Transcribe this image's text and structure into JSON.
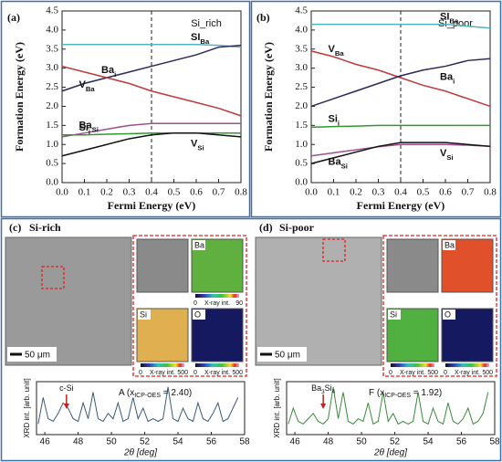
{
  "chart_data": [
    {
      "type": "line",
      "panel": "(a)",
      "annotation": "Si_rich",
      "xlabel": "Fermi Energy (eV)",
      "ylabel": "Formation Energy (eV)",
      "x": [
        0,
        0.1,
        0.2,
        0.3,
        0.4,
        0.5,
        0.6,
        0.7,
        0.8
      ],
      "xlim": [
        0,
        0.8
      ],
      "ylim": [
        0,
        4.5
      ],
      "xticks": [
        {
          "value": 0,
          "label": "0.0"
        },
        0.1,
        0.2,
        0.3,
        0.4,
        0.5,
        0.6,
        0.7,
        0.8
      ],
      "yticks": [
        {
          "value": 0,
          "label": "0.0"
        },
        0.5,
        {
          "value": 1,
          "label": "1.0"
        },
        1.5,
        {
          "value": 2,
          "label": "2.0"
        },
        2.5,
        {
          "value": 3,
          "label": "3.0"
        },
        3.5,
        {
          "value": 4,
          "label": "4.0"
        },
        4.5
      ],
      "vline": 0.4,
      "series": [
        {
          "name": "SI",
          "sub": "Ba",
          "color": "#4fb3c0",
          "values": [
            3.62,
            3.62,
            3.62,
            3.62,
            3.62,
            3.62,
            3.62,
            3.6,
            3.55
          ]
        },
        {
          "name": "Ba",
          "sub": "i",
          "color": "#2a2a5a",
          "values": [
            2.4,
            2.6,
            2.75,
            2.9,
            3.05,
            3.2,
            3.35,
            3.55,
            3.6
          ]
        },
        {
          "name": "V",
          "sub": "Ba",
          "color": "#c0393b",
          "values": [
            3.05,
            2.9,
            2.75,
            2.6,
            2.4,
            2.25,
            2.1,
            1.95,
            1.75
          ]
        },
        {
          "name": "Ba",
          "sub": "Si",
          "color": "#a0508e",
          "values": [
            1.2,
            1.3,
            1.4,
            1.5,
            1.55,
            1.55,
            1.55,
            1.55,
            1.55
          ]
        },
        {
          "name": "Si",
          "sub": "i",
          "color": "#2e9a2e",
          "values": [
            1.25,
            1.25,
            1.27,
            1.28,
            1.3,
            1.3,
            1.3,
            1.3,
            1.3
          ]
        },
        {
          "name": "V",
          "sub": "Si",
          "color": "#111111",
          "values": [
            0.7,
            0.85,
            1.0,
            1.15,
            1.25,
            1.3,
            1.3,
            1.25,
            1.2
          ]
        }
      ]
    },
    {
      "type": "line",
      "panel": "(b)",
      "annotation": "Si_poor",
      "xlabel": "Fermi Energy (eV)",
      "ylabel": "Formation Energy (eV)",
      "x": [
        0,
        0.1,
        0.2,
        0.3,
        0.4,
        0.5,
        0.6,
        0.7,
        0.8
      ],
      "xlim": [
        0,
        0.8
      ],
      "ylim": [
        0,
        4.5
      ],
      "xticks": [
        {
          "value": 0,
          "label": "0.0"
        },
        0.1,
        0.2,
        0.3,
        0.4,
        0.5,
        0.6,
        0.7,
        0.8
      ],
      "yticks": [
        {
          "value": 0,
          "label": "0.0"
        },
        0.5,
        {
          "value": 1,
          "label": "1.0"
        },
        1.5,
        {
          "value": 2,
          "label": "2.0"
        },
        2.5,
        {
          "value": 3,
          "label": "3.0"
        },
        3.5,
        {
          "value": 4,
          "label": "4.0"
        },
        4.5
      ],
      "vline": 0.4,
      "series": [
        {
          "name": "SI",
          "sub": "Ba",
          "color": "#4fb3c0",
          "values": [
            4.15,
            4.15,
            4.15,
            4.15,
            4.15,
            4.15,
            4.15,
            4.1,
            4.05
          ]
        },
        {
          "name": "V",
          "sub": "Ba",
          "color": "#c0393b",
          "values": [
            3.45,
            3.3,
            3.1,
            2.95,
            2.75,
            2.55,
            2.4,
            2.2,
            2.0
          ]
        },
        {
          "name": "Ba",
          "sub": "i",
          "color": "#2a2a5a",
          "values": [
            2.0,
            2.2,
            2.4,
            2.6,
            2.8,
            2.95,
            3.05,
            3.2,
            3.25
          ]
        },
        {
          "name": "Si",
          "sub": "i",
          "color": "#2e9a2e",
          "values": [
            1.45,
            1.47,
            1.48,
            1.5,
            1.5,
            1.5,
            1.5,
            1.5,
            1.5
          ]
        },
        {
          "name": "Ba",
          "sub": "Si",
          "color": "#a0508e",
          "values": [
            0.7,
            0.78,
            0.86,
            0.94,
            1.0,
            1.0,
            1.0,
            0.98,
            0.95
          ]
        },
        {
          "name": "V",
          "sub": "Si",
          "color": "#111111",
          "values": [
            0.5,
            0.65,
            0.8,
            0.95,
            1.05,
            1.05,
            1.05,
            1.0,
            0.95
          ]
        }
      ]
    },
    {
      "type": "xrd",
      "panel": "(c)",
      "title": "Si-rich",
      "xlabel": "2θ [deg]",
      "ylabel": "XRD int. [arb. unit]",
      "annotation": {
        "pre": "A (x",
        "sub": "ICP-OES",
        "post": " = 2.40)"
      },
      "marker": {
        "text": "c-Si",
        "x": 47.3
      },
      "x": [
        45.6,
        45.9,
        46.2,
        46.5,
        46.8,
        47.1,
        47.4,
        47.7,
        48.0,
        48.3,
        48.6,
        48.9,
        49.2,
        49.5,
        49.8,
        50.1,
        50.4,
        50.7,
        51.0,
        51.3,
        51.6,
        51.9,
        52.2,
        52.5,
        52.8,
        53.1,
        53.4,
        53.7,
        54.0,
        54.3,
        54.6,
        54.9,
        55.2,
        55.5,
        55.8,
        56.1,
        56.4,
        56.7,
        57.0,
        57.3,
        57.6
      ],
      "xlim": [
        45.5,
        58
      ],
      "ylim": [
        0,
        10
      ],
      "xticks": [
        46,
        48,
        50,
        52,
        54,
        56,
        58
      ],
      "color": "#3a5a7a",
      "values": [
        2,
        7,
        3,
        2.5,
        4,
        6,
        5,
        3,
        2.5,
        6,
        3,
        8,
        3,
        2.5,
        4,
        3,
        6,
        2.5,
        3,
        7,
        3,
        5,
        2.5,
        3,
        2.5,
        3,
        9,
        3,
        2.5,
        5,
        3,
        2.5,
        6,
        3,
        2.5,
        4,
        6,
        2.5,
        3,
        5,
        7
      ],
      "scale_bar": "50 μm",
      "maps": [
        {
          "label": "Ba",
          "min": "0",
          "bar": "X-ray int.",
          "max": "90"
        },
        {
          "label": "Si",
          "min": "0",
          "bar": "X-ray int.",
          "max": "500"
        },
        {
          "label": "O",
          "min": "0",
          "bar": "X-ray int.",
          "max": "500"
        }
      ]
    },
    {
      "type": "xrd",
      "panel": "(d)",
      "title": "Si-poor",
      "xlabel": "2θ [deg]",
      "ylabel": "XRD int. [arb. unit]",
      "annotation": {
        "pre": "F (x",
        "sub": "ICP-OES",
        "post": " = 1.92)"
      },
      "marker": {
        "text": "Ba",
        "sub": "3",
        "text2": "Si",
        "sub2": "4",
        "x": 47.7
      },
      "x": [
        45.6,
        45.9,
        46.2,
        46.5,
        46.8,
        47.1,
        47.4,
        47.7,
        48.0,
        48.3,
        48.6,
        48.9,
        49.2,
        49.5,
        49.8,
        50.1,
        50.4,
        50.7,
        51.0,
        51.3,
        51.6,
        51.9,
        52.2,
        52.5,
        52.8,
        53.1,
        53.4,
        53.7,
        54.0,
        54.3,
        54.6,
        54.9,
        55.2,
        55.5,
        55.8,
        56.1,
        56.4,
        56.7,
        57.0,
        57.3,
        57.6
      ],
      "xlim": [
        45.5,
        58
      ],
      "ylim": [
        0,
        10
      ],
      "xticks": [
        46,
        48,
        50,
        52,
        54,
        56,
        58
      ],
      "color": "#3a8a3a",
      "values": [
        2,
        5,
        2.5,
        2,
        3,
        4,
        2.5,
        2,
        3,
        9,
        3,
        8,
        2.5,
        2,
        3,
        2.5,
        6,
        2,
        2.5,
        8,
        2.5,
        4,
        2,
        2.5,
        2,
        2.5,
        8,
        2.5,
        2,
        5,
        2.5,
        2,
        6,
        2.5,
        2,
        3,
        5,
        2,
        2.5,
        4,
        8
      ],
      "scale_bar": "50 μm",
      "maps": [
        {
          "label": "Ba"
        },
        {
          "label": "Si",
          "min": "0",
          "bar": "X-ray int.",
          "max": "500"
        },
        {
          "label": "O",
          "min": "0",
          "bar": "X-ray int.",
          "max": "500"
        }
      ]
    }
  ]
}
